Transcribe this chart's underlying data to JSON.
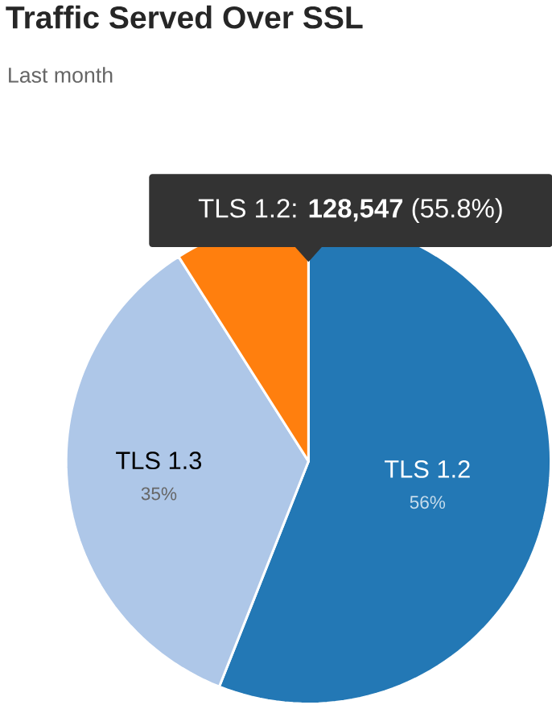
{
  "chart_data": {
    "type": "pie",
    "title": "Traffic Served Over SSL",
    "subtitle": "Last month",
    "categories": [
      "TLS 1.2",
      "TLS 1.3",
      null
    ],
    "values": [
      56,
      35,
      9
    ],
    "colors": [
      "#2378b5",
      "#aec7e8",
      "#ff7f0e"
    ],
    "value_labels": [
      "56%",
      "35%",
      null
    ],
    "annotations": [
      "TLS 1.2: **128,547** (55.8%)"
    ]
  }
}
